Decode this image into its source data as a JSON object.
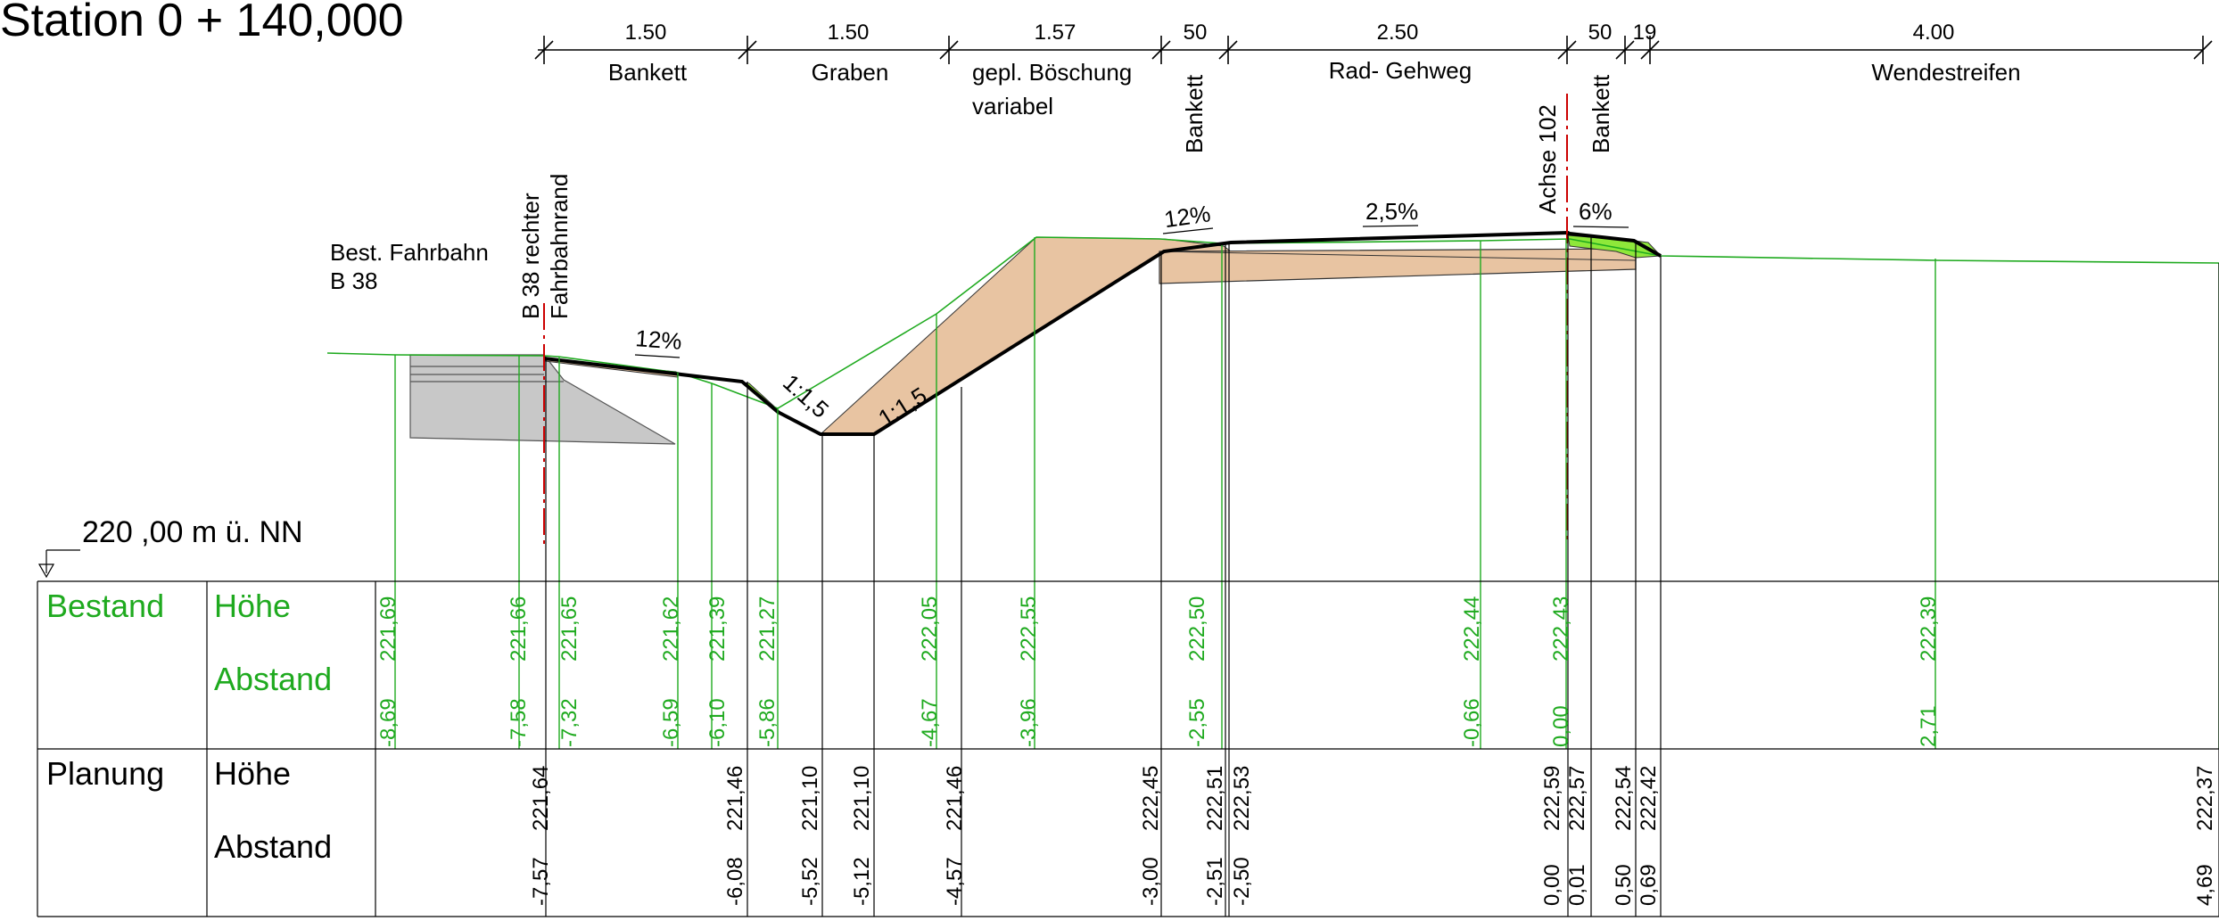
{
  "title": "Station 0 + 140,000",
  "datum_label": "220 ,00 m ü. NN",
  "annotations": {
    "existing_road": [
      "Best. Fahrbahn",
      "B 38"
    ],
    "edge_line": [
      "B 38 rechter",
      "Fahrbahnrand"
    ],
    "axis": "Achse 102",
    "slope_12_left": "12%",
    "slope_12_right": "12%",
    "slope_25": "2,5%",
    "slope_6": "6%",
    "batter_left": "1:1,5",
    "batter_right": "1:1,5"
  },
  "dimensions": [
    {
      "value": "1.50",
      "label": "Bankett"
    },
    {
      "value": "1.50",
      "label": "Graben"
    },
    {
      "value": "1.57",
      "label": "gepl. Böschung",
      "label2": "variabel"
    },
    {
      "value": "50",
      "label": "Bankett"
    },
    {
      "value": "2.50",
      "label": "Rad- Gehweg"
    },
    {
      "value": "50",
      "label": ""
    },
    {
      "value": "19",
      "label": "Bankett"
    },
    {
      "value": "4.00",
      "label": "Wendestreifen"
    }
  ],
  "table": {
    "bestand": {
      "label": "Bestand",
      "hoehe_label": "Höhe",
      "abstand_label": "Abstand",
      "points": [
        {
          "hoehe": "221,69",
          "abstand": "-8,69"
        },
        {
          "hoehe": "221,66",
          "abstand": "-7,58"
        },
        {
          "hoehe": "221,65",
          "abstand": "-7,32"
        },
        {
          "hoehe": "221,62",
          "abstand": "-6,59"
        },
        {
          "hoehe": "221,39",
          "abstand": "-6,10"
        },
        {
          "hoehe": "221,27",
          "abstand": "-5,86"
        },
        {
          "hoehe": "222,05",
          "abstand": "-4,67"
        },
        {
          "hoehe": "222,55",
          "abstand": "-3,96"
        },
        {
          "hoehe": "222,50",
          "abstand": "-2,55"
        },
        {
          "hoehe": "222,44",
          "abstand": "-0,66"
        },
        {
          "hoehe": "222,43",
          "abstand": "0,00"
        },
        {
          "hoehe": "222,39",
          "abstand": "2,71"
        }
      ]
    },
    "planung": {
      "label": "Planung",
      "hoehe_label": "Höhe",
      "abstand_label": "Abstand",
      "points": [
        {
          "hoehe": "221,64",
          "abstand": "-7,57"
        },
        {
          "hoehe": "221,46",
          "abstand": "-6,08"
        },
        {
          "hoehe": "221,10",
          "abstand": "-5,52"
        },
        {
          "hoehe": "221,10",
          "abstand": "-5,12"
        },
        {
          "hoehe": "221,46",
          "abstand": "-4,57"
        },
        {
          "hoehe": "222,45",
          "abstand": "-3,00"
        },
        {
          "hoehe": "222,51",
          "abstand": "-2,51"
        },
        {
          "hoehe": "222,53",
          "abstand": "-2,50"
        },
        {
          "hoehe": "222,59",
          "abstand": "0,00"
        },
        {
          "hoehe": "222,57",
          "abstand": "0,01"
        },
        {
          "hoehe": "222,54",
          "abstand": "0,50"
        },
        {
          "hoehe": "222,42",
          "abstand": "0,69"
        },
        {
          "hoehe": "222,37",
          "abstand": "4,69"
        }
      ]
    }
  },
  "colors": {
    "existing": "#1faa1f",
    "fill_earth": "#e8c4a2",
    "fill_green": "#8ee83a",
    "existing_road_fill": "#c8c8c8",
    "axis_red": "#cc0000"
  }
}
